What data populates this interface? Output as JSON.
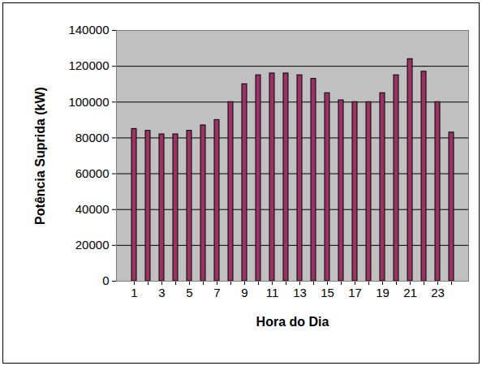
{
  "chart_data": {
    "type": "bar",
    "x_label": "Hora do Dia",
    "y_label": "Potência Suprida (kW)",
    "categories": [
      1,
      null,
      3,
      null,
      5,
      null,
      7,
      null,
      9,
      null,
      11,
      null,
      13,
      null,
      15,
      null,
      17,
      null,
      19,
      null,
      21,
      null,
      23,
      null
    ],
    "values": [
      85000,
      84000,
      82000,
      82000,
      84000,
      87000,
      90000,
      100000,
      110000,
      115000,
      116000,
      116000,
      115000,
      113000,
      105000,
      101000,
      100000,
      100000,
      105000,
      115000,
      124000,
      117000,
      100000,
      83000
    ],
    "color": "#993366",
    "ylim": [
      0,
      140000
    ],
    "yticks": [
      0,
      20000,
      40000,
      60000,
      80000,
      100000,
      120000,
      140000
    ],
    "grid": true
  }
}
